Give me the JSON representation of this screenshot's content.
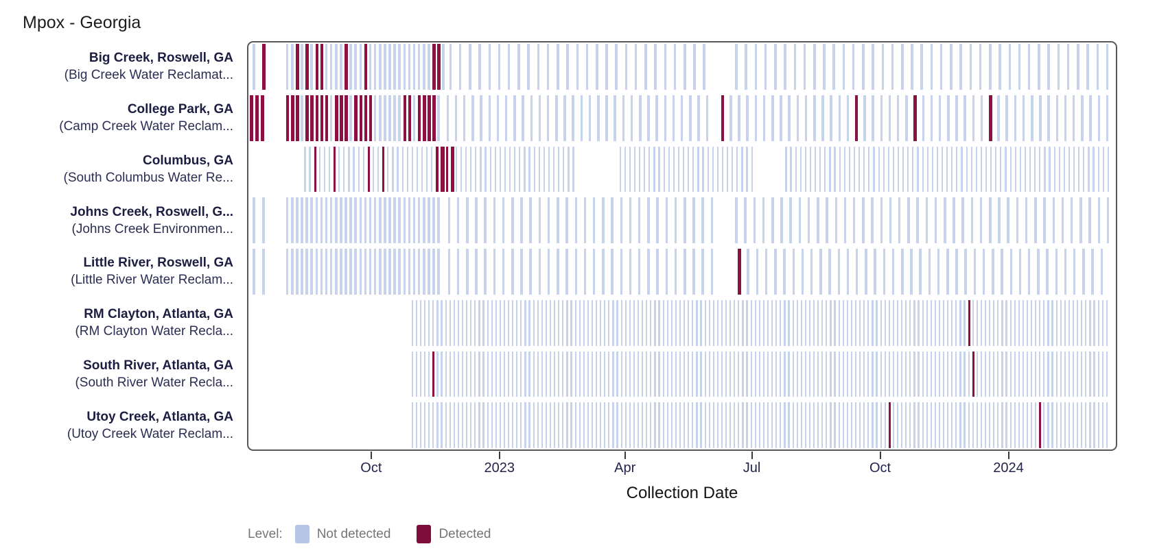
{
  "title": "Mpox - Georgia",
  "x_axis": {
    "label": "Collection Date",
    "start": "2022-07-04",
    "end": "2024-03-19",
    "ticks": [
      {
        "date": "2022-10-01",
        "label": "Oct"
      },
      {
        "date": "2023-01-01",
        "label": "2023"
      },
      {
        "date": "2023-04-01",
        "label": "Apr"
      },
      {
        "date": "2023-07-01",
        "label": "Jul"
      },
      {
        "date": "2023-10-01",
        "label": "Oct"
      },
      {
        "date": "2024-01-01",
        "label": "2024"
      }
    ]
  },
  "legend": {
    "title": "Level:",
    "items": [
      {
        "label": "Not detected",
        "color": "#b7c5e9"
      },
      {
        "label": "Detected",
        "color": "#7f0d3a"
      }
    ]
  },
  "colors": {
    "not_detected_line": "#c7d2ec",
    "detected_line": "#8c1042",
    "plot_border": "#58585b",
    "tick": "#3a3a3a",
    "tick_label": "#23234b",
    "site_label": "#1c1d40",
    "site_sublabel": "#2c2d52",
    "title": "#1c1c1c",
    "axis_title": "#141414",
    "legend_text": "#757575"
  },
  "chart_data": {
    "type": "heatmap",
    "subtype": "detection-timeline",
    "title": "Mpox - Georgia",
    "xlabel": "Collection Date",
    "x_range": [
      "2022-07-04",
      "2024-03-19"
    ],
    "levels": [
      "Not detected",
      "Detected"
    ],
    "sites": [
      {
        "label": "Big Creek, Roswell, GA",
        "sublabel": "(Big Creek Water Reclamat...",
        "line_width": 3.5,
        "sampling_periods": [
          {
            "start": "2022-07-08",
            "end": "2022-07-15",
            "interval_days": 7
          },
          {
            "start": "2022-08-01",
            "end": "2022-11-21",
            "interval_days": 3.5
          },
          {
            "start": "2022-11-26",
            "end": "2023-06-01",
            "interval_days": 7
          },
          {
            "start": "2023-06-19",
            "end": "2024-03-12",
            "interval_days": 7
          }
        ],
        "detected_dates": [
          "2022-07-15",
          "2022-08-09",
          "2022-08-16",
          "2022-08-22",
          "2022-08-27",
          "2022-09-12",
          "2022-09-26",
          "2022-11-14",
          "2022-11-18"
        ]
      },
      {
        "label": "College Park, GA",
        "sublabel": "(Camp Creek Water Reclam...",
        "line_width": 3.5,
        "sampling_periods": [
          {
            "start": "2022-07-06",
            "end": "2022-07-14",
            "interval_days": 4
          },
          {
            "start": "2022-08-01",
            "end": "2022-11-20",
            "interval_days": 3.5
          },
          {
            "start": "2022-11-24",
            "end": "2023-06-02",
            "interval_days": 6
          },
          {
            "start": "2023-06-09",
            "end": "2024-03-12",
            "interval_days": 6
          }
        ],
        "detected_dates": [
          "2022-07-06",
          "2022-07-10",
          "2022-07-14",
          "2022-08-01",
          "2022-08-04",
          "2022-08-08",
          "2022-08-15",
          "2022-08-18",
          "2022-08-22",
          "2022-08-25",
          "2022-08-29",
          "2022-09-05",
          "2022-09-08",
          "2022-09-12",
          "2022-09-19",
          "2022-09-22",
          "2022-09-26",
          "2022-10-01",
          "2022-10-24",
          "2022-10-28",
          "2022-11-05",
          "2022-11-08",
          "2022-11-12",
          "2022-11-15",
          "2023-06-09",
          "2023-09-15",
          "2023-10-27",
          "2023-12-17"
        ]
      },
      {
        "label": "Columbus, GA",
        "sublabel": "(South Columbus Water Re...",
        "line_width": 2.2,
        "sampling_periods": [
          {
            "start": "2022-08-14",
            "end": "2023-02-24",
            "interval_days": 3.5
          },
          {
            "start": "2023-03-28",
            "end": "2023-06-30",
            "interval_days": 3.5
          },
          {
            "start": "2023-07-25",
            "end": "2024-03-12",
            "interval_days": 3.5
          }
        ],
        "detected_dates": [
          "2022-08-20",
          "2022-09-03",
          "2022-09-30",
          "2022-10-10",
          "2022-11-17",
          "2022-11-19",
          "2022-11-21",
          "2022-11-23",
          "2022-11-26",
          "2022-11-28"
        ]
      },
      {
        "label": "Johns Creek, Roswell, G...",
        "sublabel": "(Johns Creek Environmen...",
        "line_width": 3.5,
        "sampling_periods": [
          {
            "start": "2022-07-08",
            "end": "2022-07-15",
            "interval_days": 7
          },
          {
            "start": "2022-08-01",
            "end": "2022-11-20",
            "interval_days": 3.5
          },
          {
            "start": "2022-11-25",
            "end": "2023-06-02",
            "interval_days": 6.5
          },
          {
            "start": "2023-06-19",
            "end": "2024-03-12",
            "interval_days": 6.5
          }
        ],
        "detected_dates": []
      },
      {
        "label": "Little River, Roswell, GA",
        "sublabel": "(Little River Water Reclam...",
        "line_width": 3.5,
        "sampling_periods": [
          {
            "start": "2022-07-08",
            "end": "2022-07-15",
            "interval_days": 7
          },
          {
            "start": "2022-08-01",
            "end": "2022-11-20",
            "interval_days": 3.5
          },
          {
            "start": "2022-11-25",
            "end": "2023-06-02",
            "interval_days": 6.5
          },
          {
            "start": "2023-06-21",
            "end": "2024-03-12",
            "interval_days": 6.5
          }
        ],
        "detected_dates": [
          "2023-06-21"
        ]
      },
      {
        "label": "RM Clayton, Atlanta, GA",
        "sublabel": "(RM Clayton Water Recla...",
        "line_width": 2.2,
        "sampling_periods": [
          {
            "start": "2022-10-30",
            "end": "2024-03-12",
            "interval_days": 3
          }
        ],
        "detected_dates": [
          "2023-12-03"
        ]
      },
      {
        "label": "South River, Atlanta, GA",
        "sublabel": "(South River Water Recla...",
        "line_width": 2.2,
        "sampling_periods": [
          {
            "start": "2022-10-30",
            "end": "2024-03-12",
            "interval_days": 3
          }
        ],
        "detected_dates": [
          "2022-11-14",
          "2023-12-08"
        ]
      },
      {
        "label": "Utoy Creek, Atlanta, GA",
        "sublabel": "(Utoy Creek Water Reclam...",
        "line_width": 2.2,
        "sampling_periods": [
          {
            "start": "2022-10-30",
            "end": "2024-03-12",
            "interval_days": 3
          }
        ],
        "detected_dates": [
          "2023-10-09",
          "2024-01-25"
        ]
      }
    ]
  }
}
